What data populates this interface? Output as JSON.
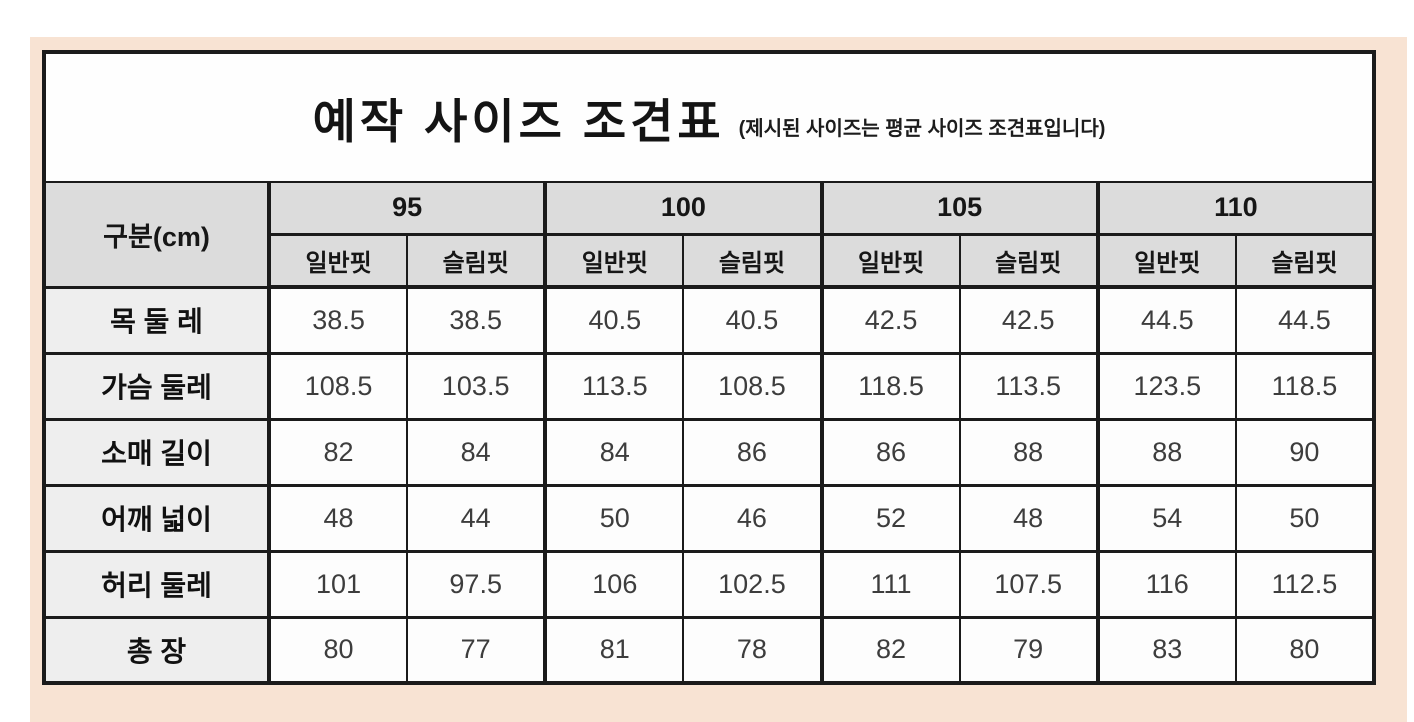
{
  "colors": {
    "page_background": "#ffffff",
    "panel_background": "#f8e3d3",
    "border": "#1b1b1b",
    "header_background": "#dcdcdc",
    "row_label_background": "#eeeeee",
    "cell_background": "#fdfdfd",
    "value_text": "#3d3d3d",
    "label_text": "#111111"
  },
  "table": {
    "title": "예작 사이즈 조견표",
    "subtitle": "(제시된 사이즈는 평균 사이즈 조견표입니다)",
    "corner_header": "구분(cm)",
    "size_groups": [
      {
        "size": "95",
        "fits": [
          "일반핏",
          "슬림핏"
        ]
      },
      {
        "size": "100",
        "fits": [
          "일반핏",
          "슬림핏"
        ]
      },
      {
        "size": "105",
        "fits": [
          "일반핏",
          "슬림핏"
        ]
      },
      {
        "size": "110",
        "fits": [
          "일반핏",
          "슬림핏"
        ]
      }
    ],
    "rows": [
      {
        "label": "목 둘 레",
        "values": [
          "38.5",
          "38.5",
          "40.5",
          "40.5",
          "42.5",
          "42.5",
          "44.5",
          "44.5"
        ]
      },
      {
        "label": "가슴 둘레",
        "values": [
          "108.5",
          "103.5",
          "113.5",
          "108.5",
          "118.5",
          "113.5",
          "123.5",
          "118.5"
        ]
      },
      {
        "label": "소매 길이",
        "values": [
          "82",
          "84",
          "84",
          "86",
          "86",
          "88",
          "88",
          "90"
        ]
      },
      {
        "label": "어깨 넓이",
        "values": [
          "48",
          "44",
          "50",
          "46",
          "52",
          "48",
          "54",
          "50"
        ]
      },
      {
        "label": "허리 둘레",
        "values": [
          "101",
          "97.5",
          "106",
          "102.5",
          "111",
          "107.5",
          "116",
          "112.5"
        ]
      },
      {
        "label": "총 장",
        "values": [
          "80",
          "77",
          "81",
          "78",
          "82",
          "79",
          "83",
          "80"
        ]
      }
    ]
  }
}
